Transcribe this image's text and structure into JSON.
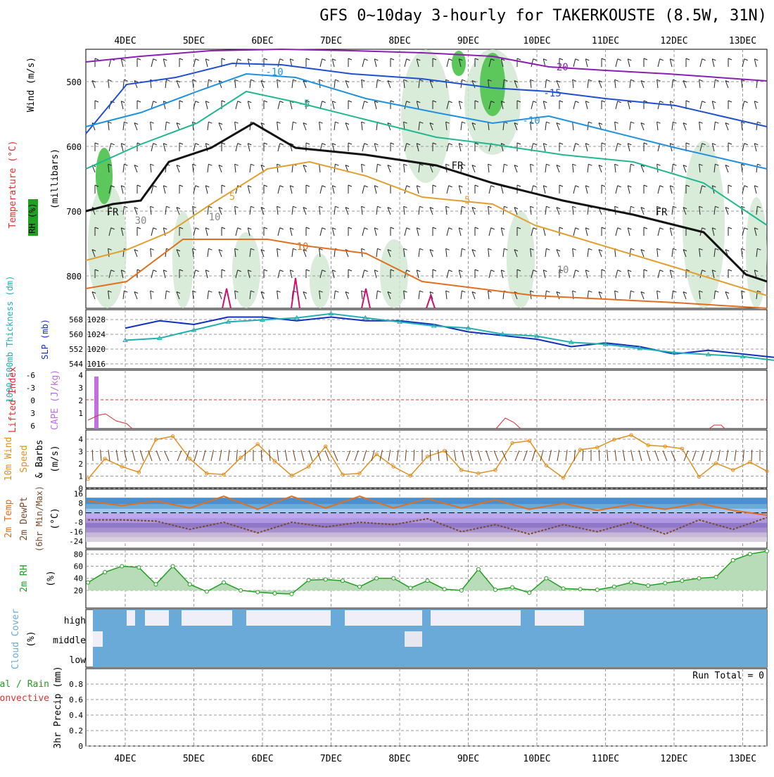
{
  "title": "GFS 0~10day 3-hourly for TAKERKOUSTE (8.5W, 31N)",
  "dates": [
    "4DEC",
    "5DEC",
    "6DEC",
    "7DEC",
    "8DEC",
    "9DEC",
    "10DEC",
    "11DEC",
    "12DEC",
    "13DEC"
  ],
  "colors": {
    "temp_line": "#e07020",
    "dewpt_line": "#7a4a2a",
    "slp": "#1030c0",
    "thickness": "#20b0b0",
    "cape": "#c070e0",
    "lifted": "#e03030",
    "wind": "#e09020",
    "rh": "#20a020",
    "cloud": "#6aaad8"
  },
  "panels": {
    "upper": {
      "ylabel_rh": "RH (%)",
      "ylabel_temp": "Temperature (°C)",
      "ylabel_wind": "Wind (m/s)",
      "ylabel_mb": "(millibars)",
      "ticks": [
        "500",
        "600",
        "700",
        "800"
      ],
      "contour_labels": [
        "-20",
        "-15",
        "-10",
        "-10",
        "-5",
        "-5",
        "5",
        "10",
        "FR",
        "FR",
        "FR",
        "10",
        "10",
        "30"
      ]
    },
    "slp": {
      "ylabel_left": "1000-500mb Thickness (dm)",
      "ylabel_right": "SLP (mb)",
      "ticks_left": [
        "568",
        "560",
        "552",
        "544"
      ],
      "ticks_right": [
        "1028",
        "1024",
        "1020",
        "1016"
      ]
    },
    "cape": {
      "ylabel_left": "Lifted Index",
      "ylabel_right": "CAPE (J/kg)",
      "ticks_left": [
        "-6",
        "-3",
        "0",
        "3",
        "6"
      ],
      "ticks_right": [
        "4",
        "3",
        "2",
        "1"
      ]
    },
    "wind": {
      "ylabel1": "10m Wind",
      "ylabel2": "Speed",
      "ylabel3": "& Barbs",
      "ylabel_unit": "(m/s)",
      "ticks": [
        "4",
        "3",
        "2",
        "1",
        "0"
      ]
    },
    "temp": {
      "ylabel1": "2m Temp",
      "ylabel2": "2m DewPt",
      "ylabel3": "(6hr Min/Max)",
      "ylabel_unit": "(°C)",
      "ticks": [
        "16",
        "8",
        "0",
        "-8",
        "-16",
        "-24"
      ]
    },
    "rh": {
      "ylabel": "2m RH",
      "ylabel_unit": "(%)",
      "ticks": [
        "80",
        "60",
        "40",
        "20"
      ]
    },
    "cloud": {
      "ylabel": "Cloud Cover",
      "ylabel_unit": "(%)",
      "levels": [
        "high",
        "middle",
        "low"
      ]
    },
    "precip": {
      "ylabel1": "Total / Rain",
      "ylabel2": "Convective",
      "ylabel3": "3hr Precip (mm)",
      "ticks": [
        "0.8",
        "0.6",
        "0.4",
        "0.2",
        "0"
      ],
      "run_total": "Run Total = 0"
    }
  },
  "chart_data": [
    {
      "type": "line",
      "panel": "SLP and 1000-500mb Thickness",
      "x_label": "",
      "series": [
        {
          "name": "SLP (mb)",
          "x_days": [
            0,
            0.5,
            1,
            1.5,
            2,
            2.5,
            3,
            3.5,
            4,
            4.5,
            5,
            5.5,
            6,
            6.5,
            7,
            7.5,
            8,
            8.5,
            9,
            9.5,
            10
          ],
          "values": [
            1025,
            1027,
            1026,
            1028,
            1028,
            1027,
            1028,
            1027,
            1027,
            1026,
            1024,
            1023,
            1022,
            1020,
            1021,
            1020,
            1018,
            1019,
            1018,
            1017,
            1020
          ],
          "ylim": [
            1014,
            1030
          ]
        },
        {
          "name": "1000-500mb Thickness (dm)",
          "x_days": [
            0,
            0.5,
            1,
            1.5,
            2,
            2.5,
            3,
            3.5,
            4,
            4.5,
            5,
            5.5,
            6,
            6.5,
            7,
            7.5,
            8,
            8.5,
            9,
            9.5,
            10
          ],
          "values": [
            556,
            557,
            561,
            565,
            566,
            567,
            569,
            567,
            565,
            563,
            562,
            559,
            558,
            555,
            554,
            552,
            550,
            549,
            548,
            546,
            543
          ],
          "ylim": [
            542,
            571
          ]
        }
      ]
    },
    {
      "type": "line",
      "panel": "10m Wind Speed",
      "ylabel": "(m/s)",
      "ylim": [
        0,
        4.5
      ],
      "x_days": [
        0,
        0.25,
        0.5,
        0.75,
        1,
        1.25,
        1.5,
        1.75,
        2,
        2.25,
        2.5,
        2.75,
        3,
        3.25,
        3.5,
        3.75,
        4,
        4.25,
        4.5,
        4.75,
        5,
        5.25,
        5.5,
        5.75,
        6,
        6.25,
        6.5,
        6.75,
        7,
        7.25,
        7.5,
        7.75,
        8,
        8.25,
        8.5,
        8.75,
        9,
        9.25,
        9.5,
        9.75,
        10
      ],
      "values": [
        0.4,
        2.2,
        1.5,
        1.0,
        3.9,
        4.2,
        2.2,
        0.9,
        0.8,
        2.3,
        3.5,
        2.0,
        0.7,
        1.5,
        3.3,
        0.8,
        0.9,
        2.6,
        1.5,
        0.7,
        2.4,
        2.9,
        1.2,
        0.9,
        1.2,
        3.6,
        3.8,
        1.6,
        0.5,
        3.0,
        3.2,
        3.9,
        4.3,
        3.4,
        3.3,
        3.1,
        0.6,
        1.8,
        1.2,
        1.9,
        1.1
      ]
    },
    {
      "type": "area",
      "panel": "2m RH",
      "ylabel": "(%)",
      "ylim": [
        0,
        85
      ],
      "x_days": [
        0,
        0.25,
        0.5,
        0.75,
        1,
        1.25,
        1.5,
        1.75,
        2,
        2.25,
        2.5,
        2.75,
        3,
        3.25,
        3.5,
        3.75,
        4,
        4.25,
        4.5,
        4.75,
        5,
        5.25,
        5.5,
        5.75,
        6,
        6.25,
        6.5,
        6.75,
        7,
        7.25,
        7.5,
        7.75,
        8,
        8.25,
        8.5,
        8.75,
        9,
        9.25,
        9.5,
        9.75,
        10
      ],
      "values": [
        33,
        50,
        60,
        58,
        30,
        60,
        30,
        18,
        33,
        20,
        17,
        15,
        14,
        37,
        38,
        36,
        26,
        40,
        40,
        24,
        36,
        22,
        20,
        55,
        21,
        25,
        16,
        40,
        23,
        22,
        21,
        26,
        33,
        28,
        32,
        36,
        40,
        42,
        70,
        80,
        85
      ]
    },
    {
      "type": "line",
      "panel": "2m Temp / DewPt",
      "ylabel": "(°C)",
      "ylim": [
        -30,
        20
      ],
      "x_days": [
        0,
        0.5,
        1,
        1.5,
        2,
        2.5,
        3,
        3.5,
        4,
        4.5,
        5,
        5.5,
        6,
        6.5,
        7,
        7.5,
        8,
        8.5,
        9,
        9.5,
        10
      ],
      "series": [
        {
          "name": "2m Temp",
          "values": [
            10,
            6,
            10,
            4,
            14,
            3,
            14,
            4,
            14,
            4,
            12,
            4,
            11,
            3,
            8,
            2,
            7,
            3,
            8,
            2,
            -2
          ]
        },
        {
          "name": "2m DewPt",
          "values": [
            -6,
            -6,
            -7,
            -14,
            -8,
            -17,
            -8,
            -12,
            -8,
            -10,
            -5,
            -16,
            -10,
            -18,
            -10,
            -16,
            -8,
            -18,
            -6,
            -14,
            -4
          ]
        }
      ]
    },
    {
      "type": "bar",
      "panel": "CAPE / Lifted Index",
      "ylabel": "CAPE (J/kg)",
      "categories": [
        "3DEC 15Z"
      ],
      "values": [
        4
      ]
    }
  ]
}
